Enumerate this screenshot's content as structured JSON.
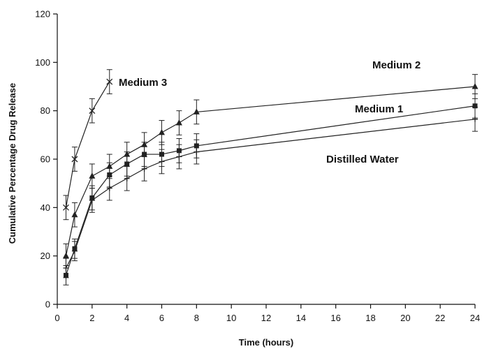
{
  "chart_data": {
    "type": "line",
    "title": "",
    "xlabel": "Time (hours)",
    "ylabel": "Cumulative Percentage Drug Release",
    "xlim": [
      0,
      24
    ],
    "ylim": [
      0,
      120
    ],
    "xticks": [
      0,
      2,
      4,
      6,
      8,
      10,
      12,
      14,
      16,
      18,
      20,
      22,
      24
    ],
    "yticks": [
      0,
      20,
      40,
      60,
      80,
      100,
      120
    ],
    "grid": false,
    "legend": "none (series labeled directly on plot)",
    "series": [
      {
        "name": "Medium 3",
        "marker": "x",
        "x": [
          0.5,
          1,
          2,
          3
        ],
        "y": [
          40,
          60,
          80,
          92
        ],
        "err": [
          5,
          5,
          5,
          5
        ]
      },
      {
        "name": "Medium 2",
        "marker": "triangle",
        "x": [
          0.5,
          1,
          2,
          3,
          4,
          5,
          6,
          7,
          8,
          24
        ],
        "y": [
          20,
          37,
          53,
          57,
          62,
          66,
          71,
          75,
          79.5,
          90
        ],
        "err": [
          5,
          5,
          5,
          5,
          5,
          5,
          5,
          5,
          5,
          5
        ]
      },
      {
        "name": "Medium 1",
        "marker": "square",
        "x": [
          0.5,
          1,
          2,
          3,
          4,
          5,
          6,
          7,
          8,
          24
        ],
        "y": [
          12,
          23,
          44,
          53.5,
          58,
          62,
          62,
          63.5,
          65.5,
          82
        ],
        "err": [
          4,
          4,
          5,
          5,
          5,
          5,
          5,
          5,
          5,
          5
        ]
      },
      {
        "name": "Distilled Water",
        "marker": "plus",
        "x": [
          0.5,
          1,
          2,
          3,
          4,
          5,
          6,
          7,
          8,
          24
        ],
        "y": [
          15,
          22,
          43,
          48,
          52,
          56,
          59,
          61,
          63,
          76.5
        ],
        "err": [
          4,
          4,
          5,
          5,
          5,
          5,
          5,
          5,
          5,
          5
        ]
      }
    ]
  }
}
